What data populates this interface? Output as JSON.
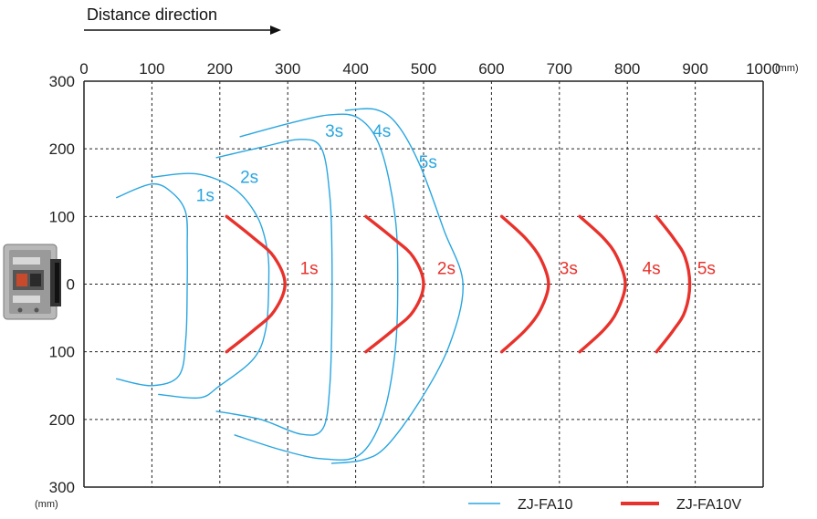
{
  "header": {
    "direction_label": "Distance direction"
  },
  "colors": {
    "zj_fa10": "#29a6e0",
    "zj_fa10v": "#e8322c",
    "grid": "#222222",
    "axis": "#111111"
  },
  "legend": {
    "position": "bottom-right",
    "items": [
      {
        "name": "ZJ-FA10",
        "color": "#29a6e0",
        "line": "thin"
      },
      {
        "name": "ZJ-FA10V",
        "color": "#e8322c",
        "line": "thick"
      }
    ]
  },
  "sensor_icon": "sensor-device-icon",
  "chart_data": {
    "type": "line",
    "title": "",
    "xlabel": "Distance direction",
    "ylabel": "",
    "x_unit": "(mm)",
    "y_unit": "(mm)",
    "xlim": [
      0,
      1000
    ],
    "ylim": [
      -300,
      300
    ],
    "x_ticks": [
      "0",
      "100",
      "200",
      "300",
      "400",
      "500",
      "600",
      "700",
      "800",
      "900",
      "1000"
    ],
    "y_ticks": [
      "300",
      "200",
      "100",
      "0",
      "100",
      "200",
      "300"
    ],
    "grid": true,
    "series": [
      {
        "name": "ZJ-FA10",
        "label": "1s",
        "label_at": [
          165,
          123
        ],
        "points": [
          [
            48,
            128
          ],
          [
            100,
            148
          ],
          [
            130,
            135
          ],
          [
            150,
            105
          ],
          [
            152,
            50
          ],
          [
            152,
            0
          ],
          [
            150,
            -80
          ],
          [
            140,
            -135
          ],
          [
            100,
            -150
          ],
          [
            48,
            -140
          ]
        ]
      },
      {
        "name": "ZJ-FA10",
        "label": "2s",
        "label_at": [
          230,
          150
        ],
        "points": [
          [
            100,
            158
          ],
          [
            165,
            163
          ],
          [
            220,
            142
          ],
          [
            255,
            100
          ],
          [
            270,
            50
          ],
          [
            272,
            0
          ],
          [
            268,
            -65
          ],
          [
            250,
            -110
          ],
          [
            200,
            -150
          ],
          [
            170,
            -168
          ],
          [
            110,
            -163
          ]
        ]
      },
      {
        "name": "ZJ-FA10",
        "label": "3s",
        "label_at": [
          355,
          218
        ],
        "points": [
          [
            195,
            187
          ],
          [
            260,
            202
          ],
          [
            320,
            214
          ],
          [
            350,
            200
          ],
          [
            362,
            130
          ],
          [
            365,
            50
          ],
          [
            365,
            -50
          ],
          [
            362,
            -150
          ],
          [
            352,
            -213
          ],
          [
            320,
            -222
          ],
          [
            260,
            -200
          ],
          [
            195,
            -188
          ]
        ]
      },
      {
        "name": "ZJ-FA10",
        "label": "4s",
        "label_at": [
          425,
          218
        ],
        "points": [
          [
            230,
            218
          ],
          [
            300,
            237
          ],
          [
            360,
            250
          ],
          [
            405,
            245
          ],
          [
            437,
            200
          ],
          [
            458,
            100
          ],
          [
            462,
            0
          ],
          [
            458,
            -100
          ],
          [
            440,
            -195
          ],
          [
            405,
            -253
          ],
          [
            350,
            -258
          ],
          [
            290,
            -245
          ],
          [
            222,
            -223
          ]
        ]
      },
      {
        "name": "ZJ-FA10",
        "label": "5s",
        "label_at": [
          493,
          172
        ],
        "points": [
          [
            385,
            257
          ],
          [
            430,
            258
          ],
          [
            462,
            235
          ],
          [
            495,
            175
          ],
          [
            530,
            80
          ],
          [
            558,
            0
          ],
          [
            538,
            -90
          ],
          [
            495,
            -172
          ],
          [
            445,
            -240
          ],
          [
            410,
            -260
          ],
          [
            365,
            -265
          ]
        ]
      },
      {
        "name": "ZJ-FA10V",
        "label": "1s",
        "label_at": [
          318,
          15
        ],
        "points": [
          [
            210,
            100
          ],
          [
            250,
            68
          ],
          [
            280,
            40
          ],
          [
            296,
            0
          ],
          [
            280,
            -40
          ],
          [
            250,
            -68
          ],
          [
            210,
            -100
          ]
        ]
      },
      {
        "name": "ZJ-FA10V",
        "label": "2s",
        "label_at": [
          520,
          15
        ],
        "points": [
          [
            415,
            100
          ],
          [
            455,
            68
          ],
          [
            485,
            40
          ],
          [
            500,
            0
          ],
          [
            485,
            -40
          ],
          [
            455,
            -68
          ],
          [
            415,
            -100
          ]
        ]
      },
      {
        "name": "ZJ-FA10V",
        "label": "3s",
        "label_at": [
          700,
          15
        ],
        "points": [
          [
            615,
            100
          ],
          [
            650,
            68
          ],
          [
            672,
            38
          ],
          [
            684,
            0
          ],
          [
            672,
            -38
          ],
          [
            650,
            -68
          ],
          [
            615,
            -100
          ]
        ]
      },
      {
        "name": "ZJ-FA10V",
        "label": "4s",
        "label_at": [
          822,
          15
        ],
        "points": [
          [
            730,
            100
          ],
          [
            765,
            68
          ],
          [
            785,
            40
          ],
          [
            797,
            0
          ],
          [
            785,
            -40
          ],
          [
            765,
            -68
          ],
          [
            730,
            -100
          ]
        ]
      },
      {
        "name": "ZJ-FA10V",
        "label": "5s",
        "label_at": [
          903,
          15
        ],
        "points": [
          [
            843,
            100
          ],
          [
            868,
            68
          ],
          [
            885,
            40
          ],
          [
            892,
            0
          ],
          [
            885,
            -40
          ],
          [
            868,
            -68
          ],
          [
            843,
            -100
          ]
        ]
      }
    ]
  }
}
